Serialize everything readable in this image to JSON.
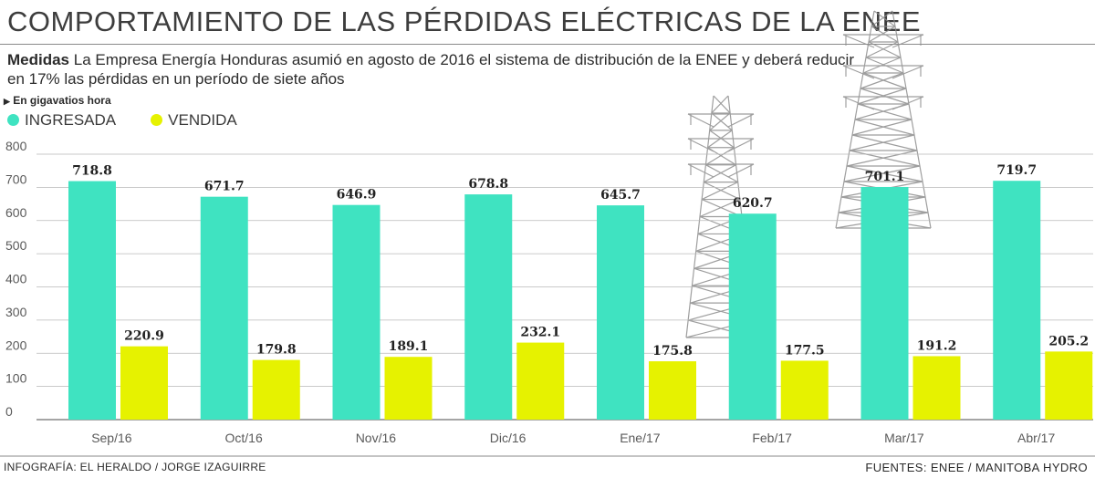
{
  "header": {
    "title": "COMPORTAMIENTO DE LAS PÉRDIDAS ELÉCTRICAS DE LA ENEE",
    "subtitle_lead": "Medidas",
    "subtitle_text": "La Empresa Energía Honduras asumió en agosto de 2016 el sistema de distribución de la ENEE y deberá reducir en 17% las pérdidas en un período de siete años",
    "units": "En gigavatios hora"
  },
  "footer": {
    "credit": "INFOGRAFÍA: EL HERALDO / JORGE IZAGUIRRE",
    "sources": "FUENTES: ENEE / MANITOBA HYDRO"
  },
  "illustration": {
    "icon": "transmission-tower-icon"
  },
  "chart_data": {
    "type": "bar",
    "categories": [
      "Sep/16",
      "Oct/16",
      "Nov/16",
      "Dic/16",
      "Ene/17",
      "Feb/17",
      "Mar/17",
      "Abr/17"
    ],
    "series": [
      {
        "name": "INGRESADA",
        "color": "#3fe3c1",
        "values": [
          718.8,
          671.7,
          646.9,
          678.8,
          645.7,
          620.7,
          701.1,
          719.7
        ],
        "labels": [
          "718.8",
          "671.7",
          "646.9",
          "678.8",
          "645.7",
          "620.7",
          "701.1",
          "719.7"
        ]
      },
      {
        "name": "VENDIDA",
        "color": "#e6f200",
        "values": [
          220.9,
          179.8,
          189.1,
          232.1,
          175.8,
          177.5,
          191.2,
          205.2
        ],
        "labels": [
          "220.9",
          "179.8",
          "189.1",
          "232.1",
          "175.8",
          "177.5",
          "191.2",
          "205.2"
        ]
      }
    ],
    "y_ticks": [
      "0",
      "100",
      "200",
      "300",
      "400",
      "500",
      "600",
      "700",
      "800"
    ],
    "ylim": [
      0,
      800
    ],
    "grid": true,
    "legend_position": "top-left",
    "grid_color": "#b9b9b9"
  }
}
